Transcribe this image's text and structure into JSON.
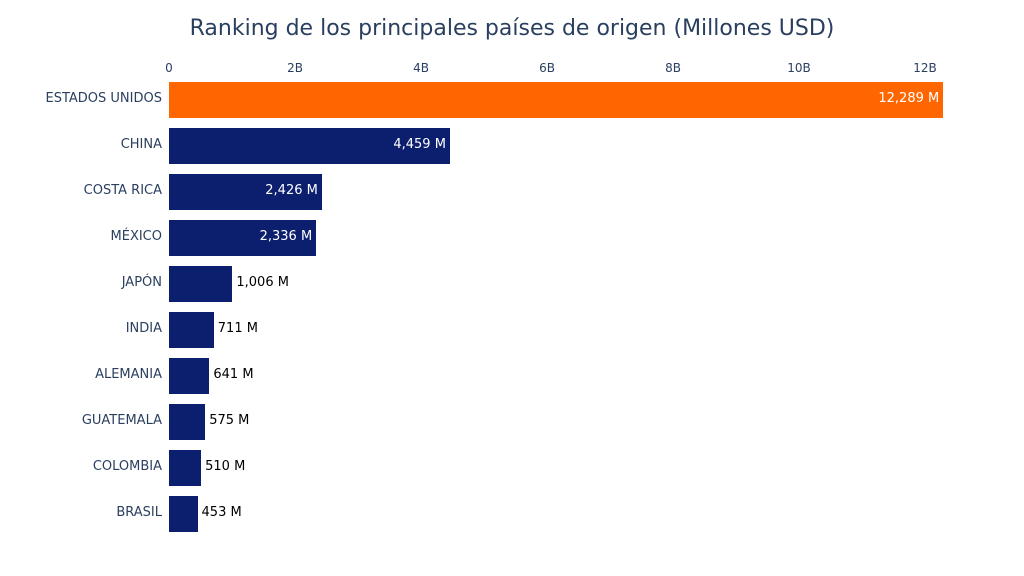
{
  "title": "Ranking de los principales países de origen (Millones USD)",
  "colors": {
    "highlight": "#ff6600",
    "bar": "#0c1f6e",
    "text": "#2a3f5f",
    "inside_label": "#ffffff",
    "outside_label": "#000000"
  },
  "axis": {
    "ticks": [
      "0",
      "2B",
      "4B",
      "6B",
      "8B",
      "10B",
      "12B"
    ]
  },
  "chart_data": {
    "type": "bar",
    "orientation": "horizontal",
    "title": "Ranking de los principales países de origen (Millones USD)",
    "xlabel": "",
    "ylabel": "",
    "xlim": [
      0,
      12300
    ],
    "x_tick_labels": [
      "0",
      "2B",
      "4B",
      "6B",
      "8B",
      "10B",
      "12B"
    ],
    "categories": [
      "ESTADOS UNIDOS",
      "CHINA",
      "COSTA RICA",
      "MÉXICO",
      "JAPÓN",
      "INDIA",
      "ALEMANIA",
      "GUATEMALA",
      "COLOMBIA",
      "BRASIL"
    ],
    "values": [
      12289,
      4459,
      2426,
      2336,
      1006,
      711,
      641,
      575,
      510,
      453
    ],
    "labels": [
      "12,289 M",
      "4,459 M",
      "2,426 M",
      "2,336 M",
      "1,006 M",
      "711 M",
      "641 M",
      "575 M",
      "510 M",
      "453 M"
    ],
    "units": "Millones USD",
    "grid": false,
    "legend": null
  }
}
